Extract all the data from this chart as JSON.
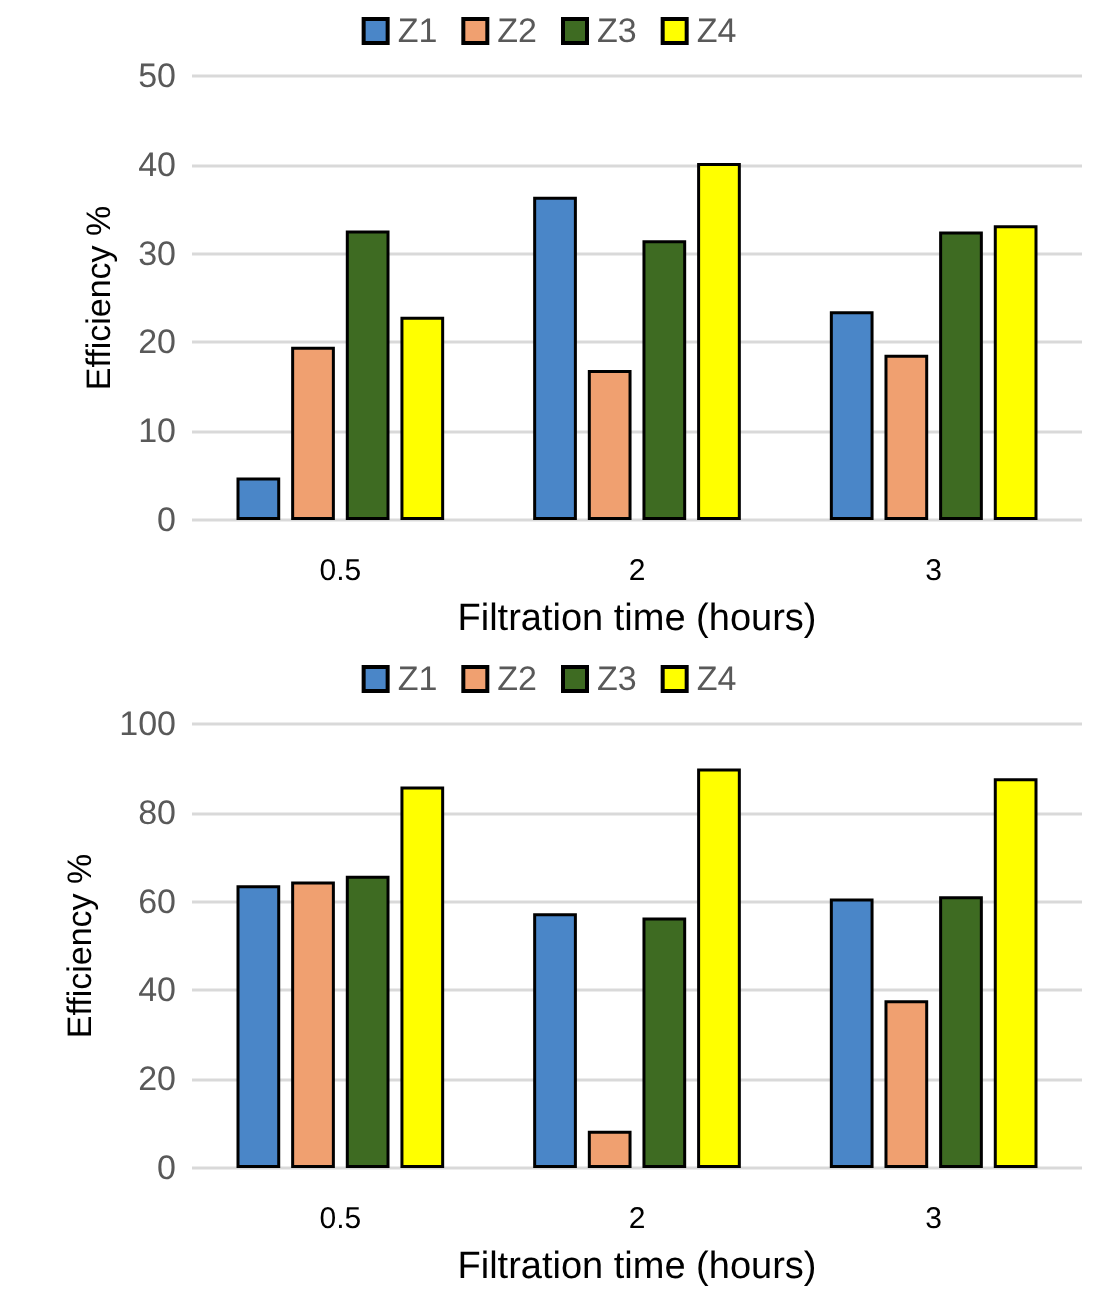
{
  "chart_data": [
    {
      "type": "bar",
      "xlabel": "Filtration time (hours)",
      "ylabel": "Efficiency %",
      "categories": [
        "0.5",
        "2",
        "3"
      ],
      "series": [
        {
          "name": "Z1",
          "color": "#4a86c8",
          "values": [
            4.8,
            36.4,
            23.5
          ]
        },
        {
          "name": "Z2",
          "color": "#f0a070",
          "values": [
            19.5,
            16.9,
            18.6
          ]
        },
        {
          "name": "Z3",
          "color": "#3e6b22",
          "values": [
            32.6,
            31.5,
            32.5
          ]
        },
        {
          "name": "Z4",
          "color": "#ffff00",
          "values": [
            22.9,
            40.2,
            33.2
          ]
        }
      ],
      "ylim": [
        0,
        50
      ],
      "yticks": [
        0,
        10,
        20,
        30,
        40,
        50
      ],
      "grid": "y",
      "legend": "top"
    },
    {
      "type": "bar",
      "xlabel": "Filtration time (hours)",
      "ylabel": "Efficiency %",
      "categories": [
        "0.5",
        "2",
        "3"
      ],
      "series": [
        {
          "name": "Z1",
          "color": "#4a86c8",
          "values": [
            63.7,
            57.4,
            60.7
          ]
        },
        {
          "name": "Z2",
          "color": "#f0a070",
          "values": [
            64.5,
            8.4,
            37.8
          ]
        },
        {
          "name": "Z3",
          "color": "#3e6b22",
          "values": [
            65.8,
            56.4,
            61.2
          ]
        },
        {
          "name": "Z4",
          "color": "#ffff00",
          "values": [
            85.9,
            90.0,
            87.8
          ]
        }
      ],
      "ylim": [
        0,
        100
      ],
      "yticks": [
        0,
        20,
        40,
        60,
        80,
        100
      ],
      "grid": "y",
      "legend": "top"
    }
  ]
}
